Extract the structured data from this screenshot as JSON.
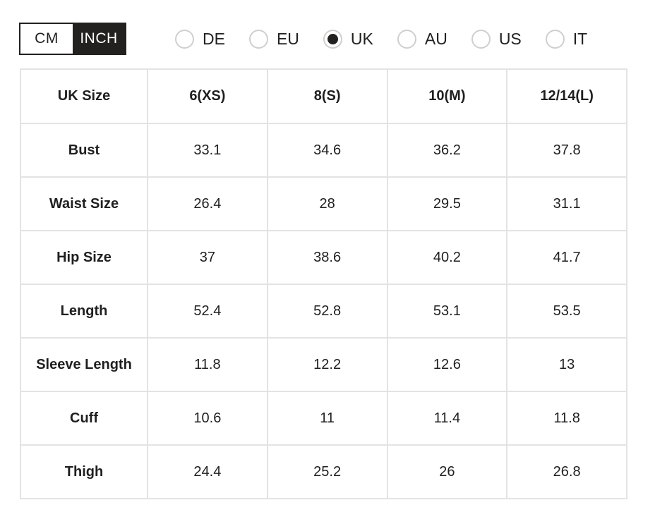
{
  "unit_toggle": {
    "options": [
      {
        "label": "CM",
        "selected": false
      },
      {
        "label": "INCH",
        "selected": true
      }
    ]
  },
  "region_selector": {
    "options": [
      {
        "label": "DE",
        "selected": false
      },
      {
        "label": "EU",
        "selected": false
      },
      {
        "label": "UK",
        "selected": true
      },
      {
        "label": "AU",
        "selected": false
      },
      {
        "label": "US",
        "selected": false
      },
      {
        "label": "IT",
        "selected": false
      }
    ]
  },
  "size_table": {
    "columns": [
      "UK Size",
      "6(XS)",
      "8(S)",
      "10(M)",
      "12/14(L)"
    ],
    "rows": [
      {
        "label": "Bust",
        "values": [
          "33.1",
          "34.6",
          "36.2",
          "37.8"
        ]
      },
      {
        "label": "Waist Size",
        "values": [
          "26.4",
          "28",
          "29.5",
          "31.1"
        ]
      },
      {
        "label": "Hip Size",
        "values": [
          "37",
          "38.6",
          "40.2",
          "41.7"
        ]
      },
      {
        "label": "Length",
        "values": [
          "52.4",
          "52.8",
          "53.1",
          "53.5"
        ]
      },
      {
        "label": "Sleeve Length",
        "values": [
          "11.8",
          "12.2",
          "12.6",
          "13"
        ]
      },
      {
        "label": "Cuff",
        "values": [
          "10.6",
          "11",
          "11.4",
          "11.8"
        ]
      },
      {
        "label": "Thigh",
        "values": [
          "24.4",
          "25.2",
          "26",
          "26.8"
        ]
      }
    ]
  },
  "colors": {
    "accent_dark": "#222120",
    "table_border": "#e3e3e3",
    "radio_border": "#cfcfcf",
    "text": "#1f1f1f",
    "background": "#ffffff"
  }
}
